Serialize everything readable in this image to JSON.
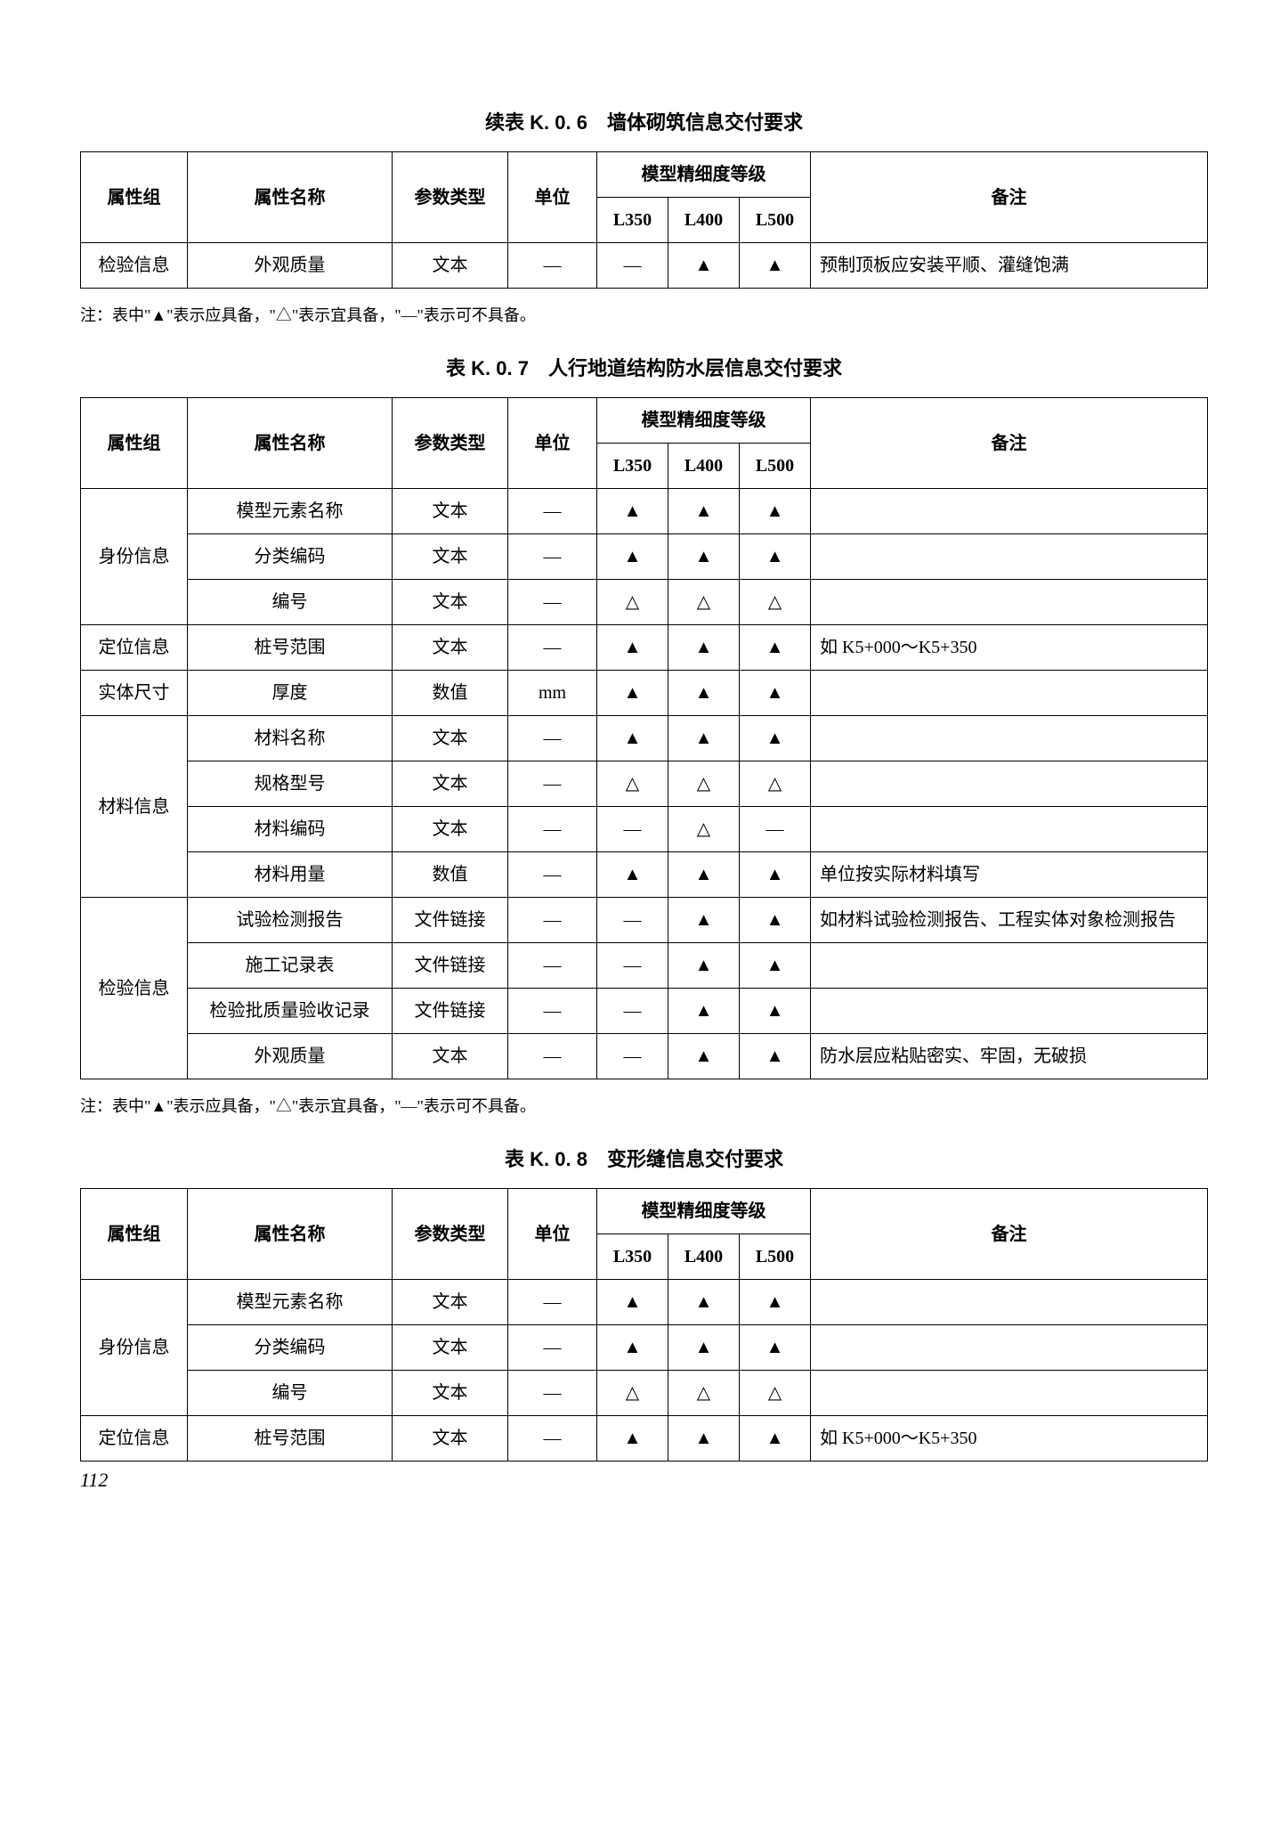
{
  "page_number": "112",
  "symbols": {
    "solid": "▲",
    "hollow": "△",
    "dash": "—"
  },
  "note_text": "注：表中\"▲\"表示应具备，\"△\"表示宜具备，\"—\"表示可不具备。",
  "headers": {
    "group": "属性组",
    "name": "属性名称",
    "ptype": "参数类型",
    "unit": "单位",
    "lod_group": "模型精细度等级",
    "l350": "L350",
    "l400": "L400",
    "l500": "L500",
    "remark": "备注"
  },
  "tables": [
    {
      "caption": "续表 K. 0. 6　墙体砌筑信息交付要求",
      "rows": [
        {
          "group": "检验信息",
          "name": "外观质量",
          "ptype": "文本",
          "unit": "—",
          "l350": "—",
          "l400": "▲",
          "l500": "▲",
          "remark": "预制顶板应安装平顺、灌缝饱满"
        }
      ]
    },
    {
      "caption": "表 K. 0. 7　人行地道结构防水层信息交付要求",
      "rows": [
        {
          "group": "身份信息",
          "groupspan": 3,
          "name": "模型元素名称",
          "ptype": "文本",
          "unit": "—",
          "l350": "▲",
          "l400": "▲",
          "l500": "▲",
          "remark": ""
        },
        {
          "group": "",
          "name": "分类编码",
          "ptype": "文本",
          "unit": "—",
          "l350": "▲",
          "l400": "▲",
          "l500": "▲",
          "remark": ""
        },
        {
          "group": "",
          "name": "编号",
          "ptype": "文本",
          "unit": "—",
          "l350": "△",
          "l400": "△",
          "l500": "△",
          "remark": ""
        },
        {
          "group": "定位信息",
          "groupspan": 1,
          "name": "桩号范围",
          "ptype": "文本",
          "unit": "—",
          "l350": "▲",
          "l400": "▲",
          "l500": "▲",
          "remark": "如 K5+000～K5+350"
        },
        {
          "group": "实体尺寸",
          "groupspan": 1,
          "name": "厚度",
          "ptype": "数值",
          "unit": "mm",
          "l350": "▲",
          "l400": "▲",
          "l500": "▲",
          "remark": ""
        },
        {
          "group": "材料信息",
          "groupspan": 4,
          "name": "材料名称",
          "ptype": "文本",
          "unit": "—",
          "l350": "▲",
          "l400": "▲",
          "l500": "▲",
          "remark": ""
        },
        {
          "group": "",
          "name": "规格型号",
          "ptype": "文本",
          "unit": "—",
          "l350": "△",
          "l400": "△",
          "l500": "△",
          "remark": ""
        },
        {
          "group": "",
          "name": "材料编码",
          "ptype": "文本",
          "unit": "—",
          "l350": "—",
          "l400": "△",
          "l500": "—",
          "remark": ""
        },
        {
          "group": "",
          "name": "材料用量",
          "ptype": "数值",
          "unit": "—",
          "l350": "▲",
          "l400": "▲",
          "l500": "▲",
          "remark": "单位按实际材料填写"
        },
        {
          "group": "检验信息",
          "groupspan": 4,
          "name": "试验检测报告",
          "ptype": "文件链接",
          "unit": "—",
          "l350": "—",
          "l400": "▲",
          "l500": "▲",
          "remark": "如材料试验检测报告、工程实体对象检测报告"
        },
        {
          "group": "",
          "name": "施工记录表",
          "ptype": "文件链接",
          "unit": "—",
          "l350": "—",
          "l400": "▲",
          "l500": "▲",
          "remark": ""
        },
        {
          "group": "",
          "name": "检验批质量验收记录",
          "ptype": "文件链接",
          "unit": "—",
          "l350": "—",
          "l400": "▲",
          "l500": "▲",
          "remark": ""
        },
        {
          "group": "",
          "name": "外观质量",
          "ptype": "文本",
          "unit": "—",
          "l350": "—",
          "l400": "▲",
          "l500": "▲",
          "remark": "防水层应粘贴密实、牢固，无破损"
        }
      ]
    },
    {
      "caption": "表 K. 0. 8　变形缝信息交付要求",
      "rows": [
        {
          "group": "身份信息",
          "groupspan": 3,
          "name": "模型元素名称",
          "ptype": "文本",
          "unit": "—",
          "l350": "▲",
          "l400": "▲",
          "l500": "▲",
          "remark": ""
        },
        {
          "group": "",
          "name": "分类编码",
          "ptype": "文本",
          "unit": "—",
          "l350": "▲",
          "l400": "▲",
          "l500": "▲",
          "remark": ""
        },
        {
          "group": "",
          "name": "编号",
          "ptype": "文本",
          "unit": "—",
          "l350": "△",
          "l400": "△",
          "l500": "△",
          "remark": ""
        },
        {
          "group": "定位信息",
          "groupspan": 1,
          "name": "桩号范围",
          "ptype": "文本",
          "unit": "—",
          "l350": "▲",
          "l400": "▲",
          "l500": "▲",
          "remark": "如 K5+000～K5+350"
        }
      ]
    }
  ]
}
